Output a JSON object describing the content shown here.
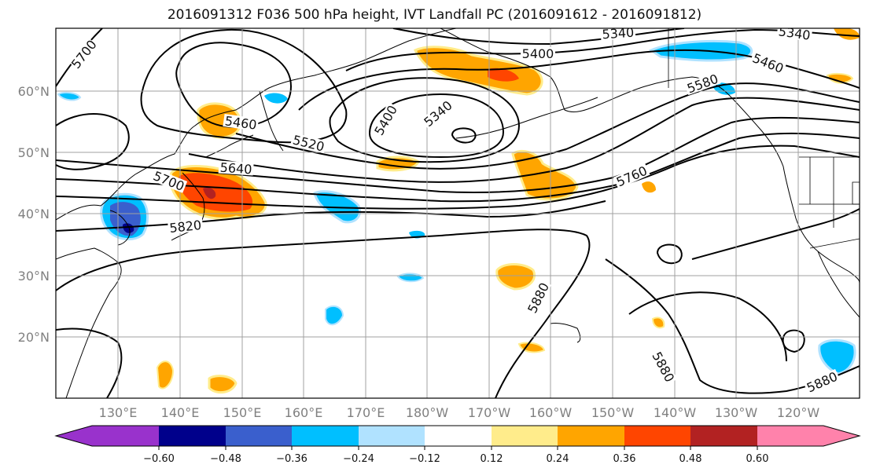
{
  "title": "2016091312 F036 500 hPa height, IVT Landfall PC (2016091612 - 2016091812)",
  "map": {
    "lat_labels": [
      "60°N",
      "50°N",
      "40°N",
      "30°N",
      "20°N"
    ],
    "lon_labels": [
      "130°E",
      "140°E",
      "150°E",
      "160°E",
      "170°E",
      "180°W",
      "170°W",
      "160°W",
      "150°W",
      "140°W",
      "130°W",
      "120°W"
    ],
    "grid": true,
    "contour_labels": [
      "5700",
      "5460",
      "5400",
      "5340",
      "5340",
      "5400",
      "5460",
      "5520",
      "5580",
      "5640",
      "5700",
      "5760",
      "5820",
      "5880",
      "5880",
      "5880",
      "5340"
    ],
    "colors": {
      "contour": "#000000",
      "grid": "#a0a0a0",
      "coast": "#000000",
      "label_gray": "#808080"
    }
  },
  "colorbar": {
    "tick_labels": [
      "−0.60",
      "−0.48",
      "−0.36",
      "−0.24",
      "−0.12",
      "0.12",
      "0.24",
      "0.36",
      "0.48",
      "0.60"
    ],
    "colors": [
      "#9932cc",
      "#00008b",
      "#3a5fcd",
      "#00bfff",
      "#b0e2ff",
      "#ffffff",
      "#ffec8b",
      "#ffa500",
      "#ff4500",
      "#b22222",
      "#ff82ab"
    ],
    "extend": "both"
  }
}
